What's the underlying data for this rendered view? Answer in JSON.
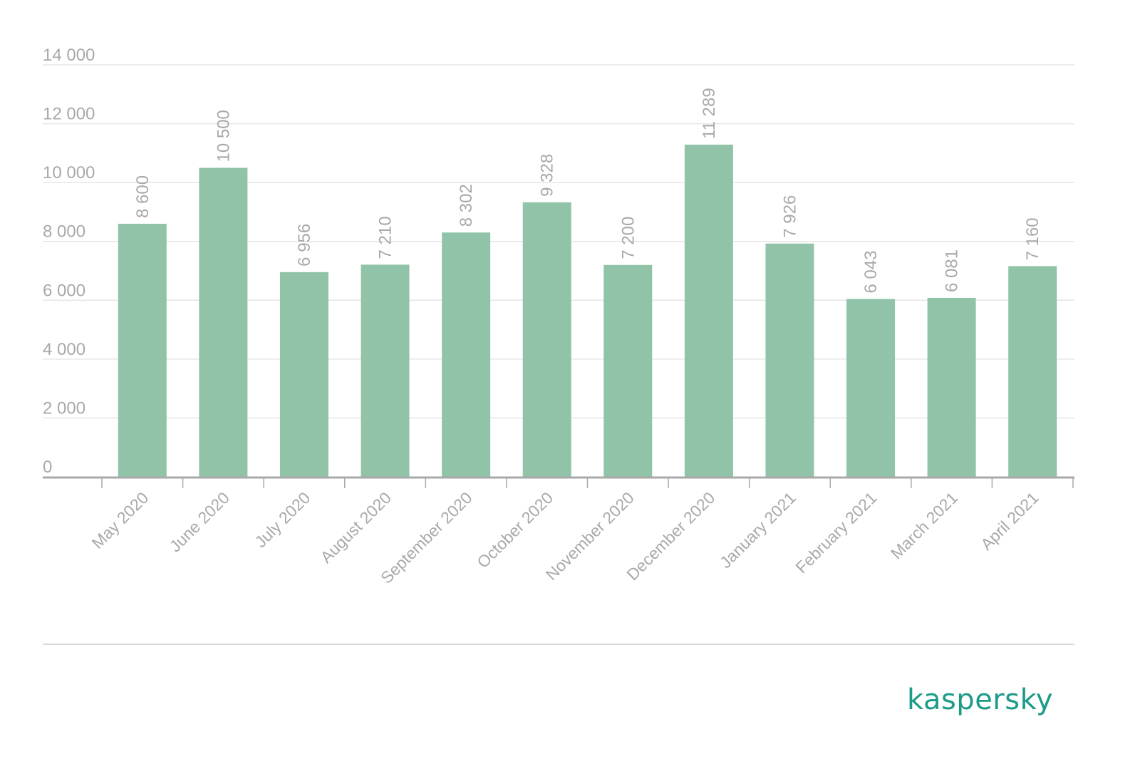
{
  "brand": {
    "logo_text": "kaspersky",
    "color": "#1d9b87"
  },
  "colors": {
    "bar": "#90c3a7",
    "grid": "#e6e6e6",
    "axis": "#a9a9a9",
    "text": "#a9a9a9",
    "footer_line": "#d9d9d9"
  },
  "chart_data": {
    "type": "bar",
    "categories": [
      "May 2020",
      "June 2020",
      "July 2020",
      "August 2020",
      "September 2020",
      "October 2020",
      "November 2020",
      "December 2020",
      "January 2021",
      "February 2021",
      "March 2021",
      "April 2021"
    ],
    "values": [
      8600,
      10500,
      6956,
      7210,
      8302,
      9328,
      7200,
      11289,
      7926,
      6043,
      6081,
      7160
    ],
    "value_labels": [
      "8 600",
      "10 500",
      "6 956",
      "7 210",
      "8 302",
      "9 328",
      "7 200",
      "11 289",
      "7 926",
      "6 043",
      "6 081",
      "7 160"
    ],
    "yticks": [
      0,
      2000,
      4000,
      6000,
      8000,
      10000,
      12000,
      14000
    ],
    "ytick_labels": [
      "0",
      "2 000",
      "4 000",
      "6 000",
      "8 000",
      "10 000",
      "12 000",
      "14 000"
    ],
    "ylim": [
      0,
      14000
    ],
    "grid": true,
    "title": "",
    "xlabel": "",
    "ylabel": ""
  }
}
